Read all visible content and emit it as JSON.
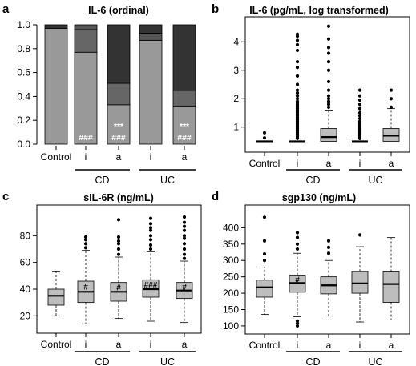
{
  "chart_data": [
    {
      "panel": "a",
      "type": "bar",
      "stacked": true,
      "title": "IL-6 (ordinal)",
      "categories": [
        "Control",
        "i",
        "a",
        "i",
        "a"
      ],
      "groups": [
        {
          "label": "CD",
          "members": [
            1,
            2
          ]
        },
        {
          "label": "UC",
          "members": [
            3,
            4
          ]
        }
      ],
      "ylim": [
        0,
        1
      ],
      "yticks": [
        "0.0",
        "0.2",
        "0.4",
        "0.6",
        "0.8",
        "1.0"
      ],
      "series": [
        {
          "color": "#999999",
          "values": [
            0.97,
            0.77,
            0.33,
            0.87,
            0.32
          ]
        },
        {
          "color": "#666666",
          "values": [
            0.0,
            0.19,
            0.18,
            0.0,
            0.13
          ]
        },
        {
          "color": "#555555",
          "values": [
            0.0,
            0.04,
            0.0,
            0.06,
            0.0
          ]
        },
        {
          "color": "#333333",
          "values": [
            0.03,
            0.0,
            0.49,
            0.07,
            0.55
          ]
        }
      ],
      "annotations": [
        {
          "category": 1,
          "lines": [
            "###"
          ]
        },
        {
          "category": 2,
          "lines": [
            "***",
            "###"
          ]
        },
        {
          "category": 4,
          "lines": [
            "***",
            "###"
          ]
        }
      ]
    },
    {
      "panel": "b",
      "type": "box",
      "title": "IL-6 (pg/mL, log transformed)",
      "categories": [
        "Control",
        "i",
        "a",
        "i",
        "a"
      ],
      "groups": [
        {
          "label": "CD",
          "members": [
            1,
            2
          ]
        },
        {
          "label": "UC",
          "members": [
            3,
            4
          ]
        }
      ],
      "ylim": [
        0.4,
        4.6
      ],
      "yticks": [
        "1",
        "2",
        "3",
        "4"
      ],
      "boxes": [
        {
          "q1": 0.5,
          "median": 0.5,
          "q3": 0.5,
          "lo": 0.5,
          "hi": 0.5,
          "outliers": [
            0.62,
            0.8
          ]
        },
        {
          "q1": 0.5,
          "median": 0.5,
          "q3": 0.5,
          "lo": 0.5,
          "hi": 0.5,
          "outliers": [
            0.6,
            0.65,
            0.7,
            0.75,
            0.8,
            0.85,
            0.9,
            0.95,
            1.0,
            1.05,
            1.1,
            1.15,
            1.2,
            1.25,
            1.3,
            1.35,
            1.4,
            1.45,
            1.5,
            1.55,
            1.6,
            1.65,
            1.7,
            1.75,
            1.8,
            1.85,
            1.9,
            2.0,
            2.1,
            2.2,
            2.3,
            2.5,
            2.8,
            3.1,
            3.3,
            3.7,
            3.9,
            4.05,
            4.2,
            4.27
          ]
        },
        {
          "q1": 0.5,
          "median": 0.65,
          "q3": 0.95,
          "lo": 0.5,
          "hi": 1.6,
          "outliers": [
            1.7,
            1.8,
            1.9,
            2.0,
            2.1,
            2.3,
            2.6,
            3.0,
            3.3,
            3.6,
            3.8,
            4.1,
            4.55
          ]
        },
        {
          "q1": 0.5,
          "median": 0.5,
          "q3": 0.5,
          "lo": 0.5,
          "hi": 0.5,
          "outliers": [
            0.6,
            0.65,
            0.7,
            0.75,
            0.8,
            0.85,
            0.9,
            0.95,
            1.0,
            1.05,
            1.1,
            1.15,
            1.2,
            1.3,
            1.4,
            1.5,
            1.65,
            1.8,
            1.95,
            2.1,
            2.3
          ]
        },
        {
          "q1": 0.5,
          "median": 0.7,
          "q3": 0.95,
          "lo": 0.5,
          "hi": 1.65,
          "outliers": [
            1.7,
            2.0,
            2.3
          ]
        }
      ]
    },
    {
      "panel": "c",
      "type": "box",
      "title": "sIL-6R (ng/mL)",
      "categories": [
        "Control",
        "i",
        "a",
        "i",
        "a"
      ],
      "groups": [
        {
          "label": "CD",
          "members": [
            1,
            2
          ]
        },
        {
          "label": "UC",
          "members": [
            3,
            4
          ]
        }
      ],
      "ylim": [
        13,
        97
      ],
      "yticks": [
        "20",
        "40",
        "60",
        "80"
      ],
      "boxes": [
        {
          "q1": 28,
          "median": 35,
          "q3": 40,
          "lo": 20,
          "hi": 53,
          "outliers": []
        },
        {
          "q1": 30,
          "median": 38,
          "q3": 46,
          "lo": 14,
          "hi": 69,
          "outliers": [
            71,
            74,
            77,
            79
          ]
        },
        {
          "q1": 31,
          "median": 38,
          "q3": 45,
          "lo": 18,
          "hi": 64,
          "outliers": [
            66,
            70,
            74,
            76,
            79,
            92
          ]
        },
        {
          "q1": 34,
          "median": 40,
          "q3": 47,
          "lo": 16,
          "hi": 68,
          "outliers": [
            70,
            73,
            77,
            80,
            84,
            86,
            89,
            93
          ]
        },
        {
          "q1": 33,
          "median": 39,
          "q3": 45,
          "lo": 15,
          "hi": 61,
          "outliers": [
            63,
            66,
            70,
            74,
            78,
            80,
            84,
            87,
            90,
            94
          ]
        }
      ],
      "annotations": [
        {
          "category": 1,
          "text": "#"
        },
        {
          "category": 2,
          "text": "#"
        },
        {
          "category": 3,
          "text": "###"
        },
        {
          "category": 4,
          "text": "#"
        }
      ]
    },
    {
      "panel": "d",
      "type": "box",
      "title": "sgp130 (ng/mL)",
      "categories": [
        "Control",
        "i",
        "a",
        "i",
        "a"
      ],
      "groups": [
        {
          "label": "CD",
          "members": [
            1,
            2
          ]
        },
        {
          "label": "UC",
          "members": [
            3,
            4
          ]
        }
      ],
      "ylim": [
        90,
        445
      ],
      "yticks": [
        "100",
        "150",
        "200",
        "250",
        "300",
        "350",
        "400"
      ],
      "boxes": [
        {
          "q1": 188,
          "median": 218,
          "q3": 240,
          "lo": 135,
          "hi": 280,
          "outliers": [
            300,
            320,
            360,
            432
          ]
        },
        {
          "q1": 203,
          "median": 231,
          "q3": 255,
          "lo": 128,
          "hi": 322,
          "outliers": [
            100,
            108,
            115,
            335,
            350,
            370,
            385
          ]
        },
        {
          "q1": 198,
          "median": 224,
          "q3": 250,
          "lo": 130,
          "hi": 300,
          "outliers": [
            322,
            340,
            360
          ]
        },
        {
          "q1": 200,
          "median": 230,
          "q3": 266,
          "lo": 112,
          "hi": 342,
          "outliers": [
            378
          ]
        },
        {
          "q1": 172,
          "median": 228,
          "q3": 265,
          "lo": 118,
          "hi": 370,
          "outliers": []
        }
      ],
      "annotations": [
        {
          "category": 1,
          "text": "#"
        }
      ]
    }
  ]
}
